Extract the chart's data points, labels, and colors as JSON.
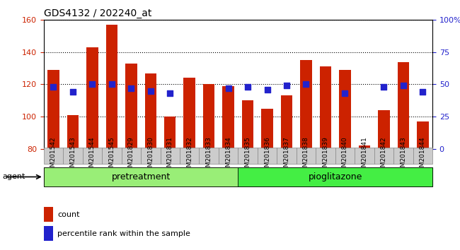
{
  "title": "GDS4132 / 202240_at",
  "samples": [
    "GSM201542",
    "GSM201543",
    "GSM201544",
    "GSM201545",
    "GSM201829",
    "GSM201830",
    "GSM201831",
    "GSM201832",
    "GSM201833",
    "GSM201834",
    "GSM201835",
    "GSM201836",
    "GSM201837",
    "GSM201838",
    "GSM201839",
    "GSM201840",
    "GSM201841",
    "GSM201842",
    "GSM201843",
    "GSM201844"
  ],
  "counts": [
    129,
    101,
    143,
    157,
    133,
    127,
    100,
    124,
    120,
    119,
    110,
    105,
    113,
    135,
    131,
    129,
    82,
    104,
    134,
    97
  ],
  "percentiles": [
    48,
    44,
    50,
    50,
    47,
    45,
    43,
    null,
    null,
    47,
    48,
    46,
    49,
    50,
    null,
    43,
    null,
    48,
    49,
    44
  ],
  "ylim_left": [
    80,
    160
  ],
  "ylim_right": [
    0,
    100
  ],
  "yticks_left": [
    80,
    100,
    120,
    140,
    160
  ],
  "yticks_right": [
    0,
    25,
    50,
    75,
    100
  ],
  "yticklabels_right": [
    "0",
    "25",
    "50",
    "75",
    "100%"
  ],
  "bar_color": "#cc2200",
  "dot_color": "#2222cc",
  "pretreatment_color": "#99ee77",
  "pioglitazone_color": "#44ee44",
  "agent_label": "agent",
  "pretreatment_label": "pretreatment",
  "pioglitazone_label": "pioglitazone",
  "legend_count": "count",
  "legend_percentile": "percentile rank within the sample",
  "bar_width": 0.6,
  "dot_size": 35
}
